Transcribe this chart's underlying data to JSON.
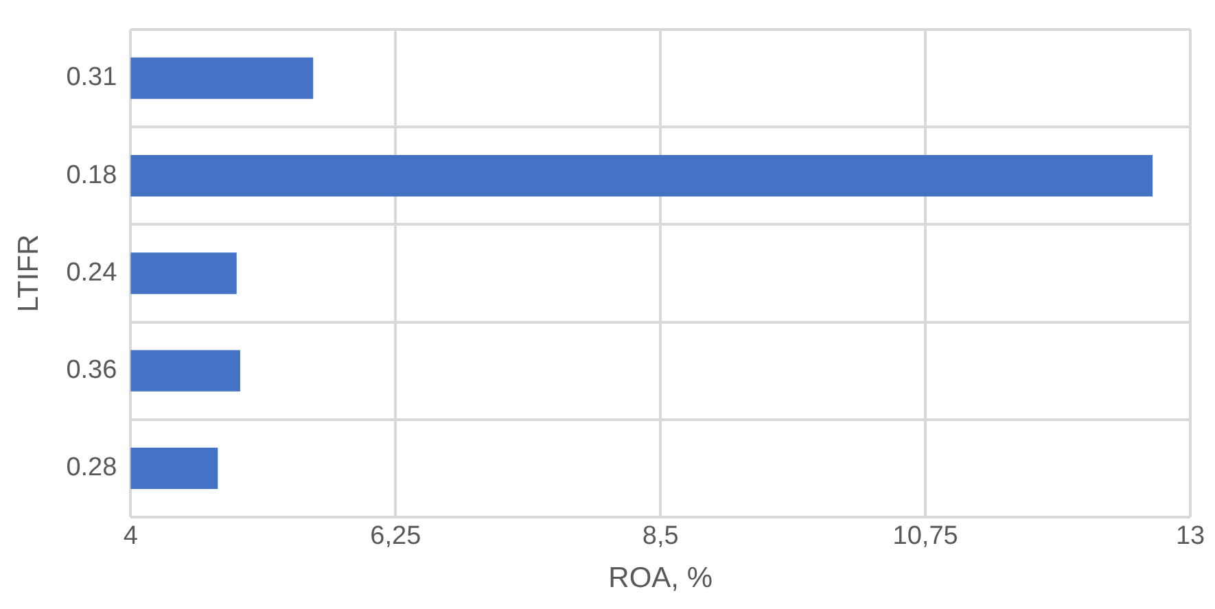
{
  "chart_data": {
    "type": "bar",
    "orientation": "horizontal",
    "categories": [
      "0.31",
      "0.18",
      "0.24",
      "0.36",
      "0.28"
    ],
    "values": [
      5.55,
      12.68,
      4.9,
      4.93,
      4.74
    ],
    "color": "#4472c4",
    "xlim": [
      4,
      13
    ],
    "xticks": [
      4,
      {
        "value": 6.25,
        "label": "6,25"
      },
      {
        "value": 8.5,
        "label": "8,5"
      },
      {
        "value": 10.75,
        "label": "10,75"
      },
      13
    ],
    "xlabel": "ROA, %",
    "ylabel": "LTIFR",
    "grid": true,
    "legend": false
  }
}
